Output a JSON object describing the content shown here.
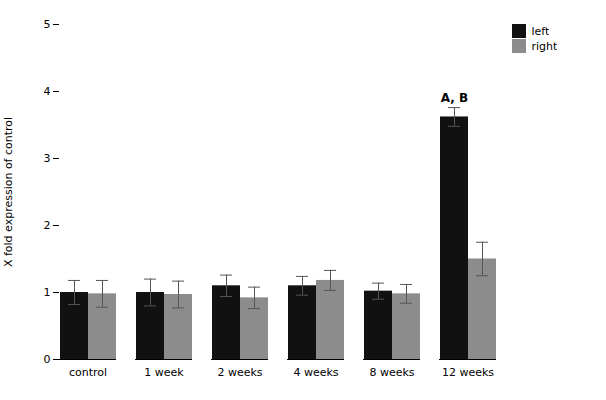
{
  "chart_data": {
    "type": "bar",
    "ylabel": "X fold expression of control",
    "categories": [
      "control",
      "1 week",
      "2 weeks",
      "4 weeks",
      "8 weeks",
      "12 weeks"
    ],
    "series": [
      {
        "name": "left",
        "color": "#111111",
        "values": [
          1.0,
          1.0,
          1.1,
          1.1,
          1.02,
          3.62
        ],
        "errors": [
          0.18,
          0.2,
          0.16,
          0.14,
          0.12,
          0.14
        ]
      },
      {
        "name": "right",
        "color": "#8c8c8c",
        "values": [
          0.98,
          0.97,
          0.92,
          1.18,
          0.98,
          1.5
        ],
        "errors": [
          0.2,
          0.2,
          0.16,
          0.15,
          0.14,
          0.25
        ]
      }
    ],
    "ylim": [
      0,
      5
    ],
    "yticks": [
      0,
      1,
      2,
      3,
      4,
      5
    ],
    "annotations": [
      {
        "text": "A, B",
        "category": "12 weeks",
        "series": "left"
      }
    ],
    "legend": "right",
    "grid": false
  }
}
